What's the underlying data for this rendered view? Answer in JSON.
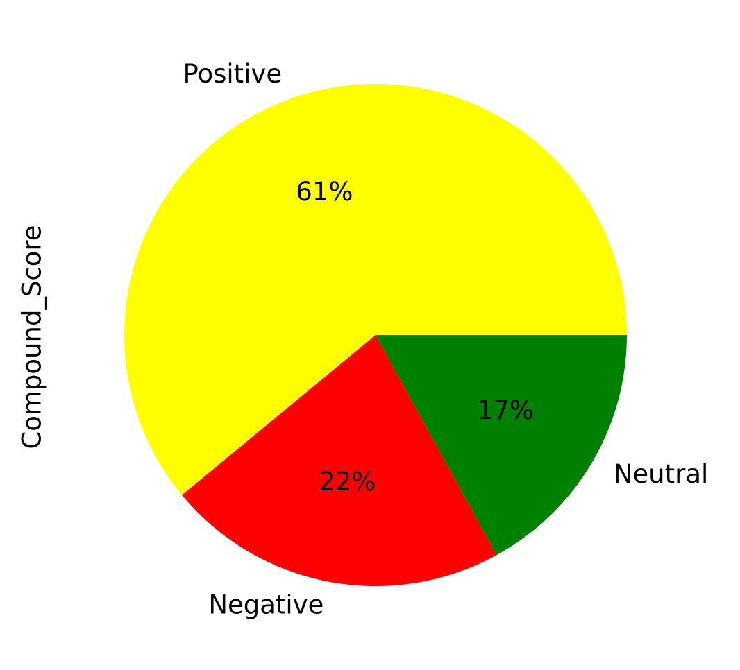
{
  "chart_data": {
    "type": "pie",
    "ylabel": "Compound_Score",
    "start_angle_deg": 0,
    "direction": "counterclockwise",
    "slices": [
      {
        "label": "Positive",
        "value": 61,
        "percent_label": "61%",
        "color": "#ffff00"
      },
      {
        "label": "Negative",
        "value": 22,
        "percent_label": "22%",
        "color": "#ff0000"
      },
      {
        "label": "Neutral",
        "value": 17,
        "percent_label": "17%",
        "color": "#008000"
      }
    ]
  }
}
